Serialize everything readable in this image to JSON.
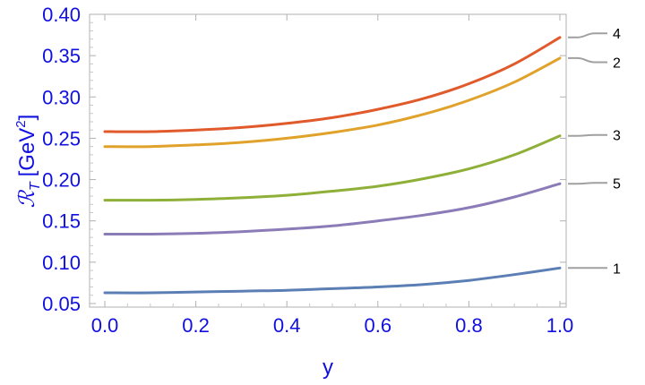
{
  "chart_data": {
    "type": "line",
    "xlabel": "y",
    "ylabel_main": "ℛ",
    "ylabel_sub": "T",
    "ylabel_unit": "[GeV",
    "ylabel_unit_sup": "2",
    "ylabel_unit_close": "]",
    "xlim": [
      0.0,
      1.0
    ],
    "ylim": [
      0.05,
      0.4
    ],
    "xticks": [
      "0.0",
      "0.2",
      "0.4",
      "0.6",
      "0.8",
      "1.0"
    ],
    "yticks": [
      "0.05",
      "0.10",
      "0.15",
      "0.20",
      "0.25",
      "0.30",
      "0.35",
      "0.40"
    ],
    "grid": false,
    "x": [
      0.0,
      0.1,
      0.2,
      0.3,
      0.4,
      0.5,
      0.6,
      0.7,
      0.8,
      0.9,
      1.0
    ],
    "series": [
      {
        "name": "4",
        "color": "#e05a2b",
        "values": [
          0.258,
          0.258,
          0.26,
          0.263,
          0.268,
          0.275,
          0.285,
          0.298,
          0.316,
          0.34,
          0.372
        ]
      },
      {
        "name": "2",
        "color": "#e0a22a",
        "values": [
          0.24,
          0.24,
          0.242,
          0.245,
          0.25,
          0.257,
          0.266,
          0.279,
          0.296,
          0.318,
          0.347
        ]
      },
      {
        "name": "3",
        "color": "#8fb038",
        "values": [
          0.175,
          0.175,
          0.176,
          0.178,
          0.181,
          0.186,
          0.192,
          0.201,
          0.213,
          0.23,
          0.253
        ]
      },
      {
        "name": "5",
        "color": "#8b7cb8",
        "values": [
          0.134,
          0.134,
          0.135,
          0.137,
          0.14,
          0.144,
          0.15,
          0.157,
          0.166,
          0.179,
          0.195
        ]
      },
      {
        "name": "1",
        "color": "#5b7fb5",
        "values": [
          0.063,
          0.063,
          0.064,
          0.065,
          0.066,
          0.068,
          0.07,
          0.073,
          0.078,
          0.085,
          0.093
        ]
      }
    ],
    "callouts": [
      {
        "label": "4",
        "value": 0.372,
        "label_value": 0.377
      },
      {
        "label": "2",
        "value": 0.347,
        "label_value": 0.342
      },
      {
        "label": "3",
        "value": 0.253,
        "label_value": 0.254
      },
      {
        "label": "5",
        "value": 0.195,
        "label_value": 0.196
      },
      {
        "label": "1",
        "value": 0.093,
        "label_value": 0.093
      }
    ],
    "callout_color": "#a0a0a0"
  }
}
